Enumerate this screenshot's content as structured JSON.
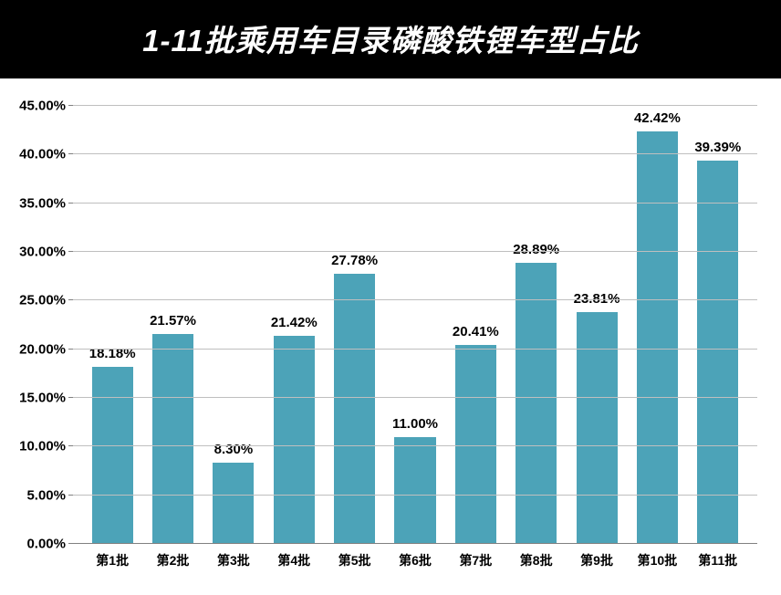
{
  "title": "1-11批乘用车目录磷酸铁锂车型占比",
  "chart": {
    "type": "bar",
    "categories": [
      "第1批",
      "第2批",
      "第3批",
      "第4批",
      "第5批",
      "第6批",
      "第7批",
      "第8批",
      "第9批",
      "第10批",
      "第11批"
    ],
    "values": [
      18.18,
      21.57,
      8.3,
      21.42,
      27.78,
      11.0,
      20.41,
      28.89,
      23.81,
      42.42,
      39.39
    ],
    "value_labels": [
      "18.18%",
      "21.57%",
      "8.30%",
      "21.42%",
      "27.78%",
      "11.00%",
      "20.41%",
      "28.89%",
      "23.81%",
      "42.42%",
      "39.39%"
    ],
    "bar_color": "#4ca3b8",
    "background_color": "#ffffff",
    "grid_color": "#bfbfbf",
    "axis_line_color": "#808080",
    "text_color": "#000000",
    "title_bg": "#000000",
    "title_color": "#ffffff",
    "title_fontsize": 33,
    "label_fontsize": 15,
    "xlabel_fontsize": 14,
    "ylim": [
      0,
      45
    ],
    "ytick_step": 5,
    "ytick_labels": [
      "0.00%",
      "5.00%",
      "10.00%",
      "15.00%",
      "20.00%",
      "25.00%",
      "30.00%",
      "35.00%",
      "40.00%",
      "45.00%"
    ],
    "bar_width_ratio": 0.68
  }
}
